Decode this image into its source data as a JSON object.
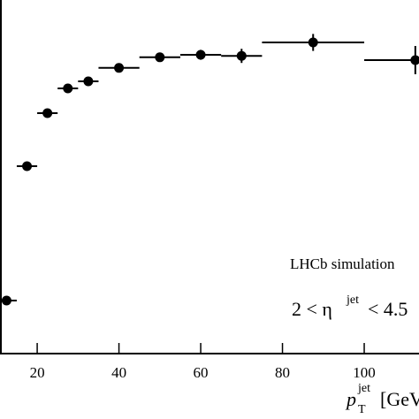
{
  "chart_data": {
    "type": "errorbar",
    "annotations": [
      "LHCb simulation",
      "2 < η",
      "jet",
      "< 4.5"
    ],
    "xlabel": {
      "main": "p",
      "sub": "T",
      "sup": "jet",
      "unit": "[GeV/c]"
    },
    "x": [
      12.5,
      17.5,
      22.5,
      27.5,
      32.5,
      40,
      50,
      60,
      70,
      87.5,
      112.5
    ],
    "xerr": [
      2.5,
      2.5,
      2.5,
      2.5,
      2.5,
      5,
      5,
      5,
      5,
      12.5,
      12.5
    ],
    "values": [
      0.575,
      0.765,
      0.84,
      0.875,
      0.885,
      0.904,
      0.919,
      0.9225,
      0.921,
      0.94,
      0.915
    ],
    "yerr": [
      0.004,
      0.004,
      0.004,
      0.004,
      0.004,
      0.005,
      0.006,
      0.007,
      0.01,
      0.012,
      0.02
    ],
    "color": "#000000",
    "xlim": [
      10.9,
      113.4
    ],
    "ylim": [
      0.5,
      1.0
    ],
    "xticks": [
      20,
      40,
      60,
      80,
      100
    ]
  }
}
